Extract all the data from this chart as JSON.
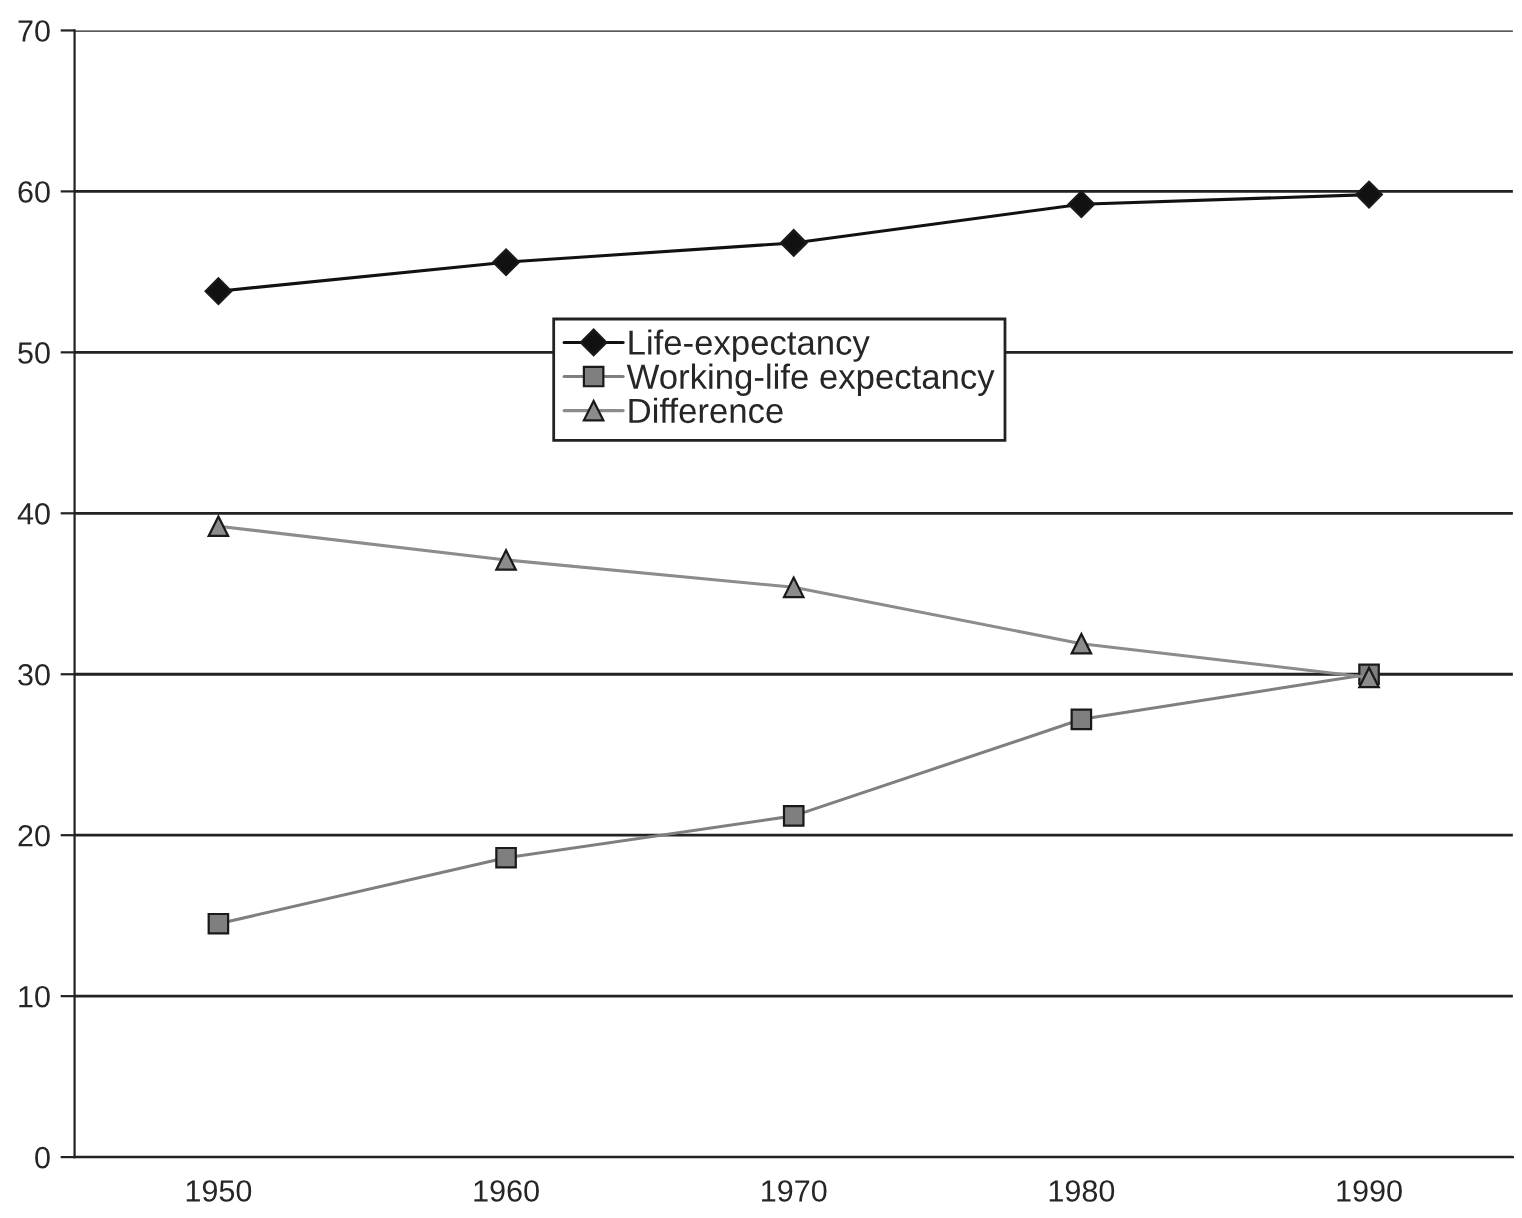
{
  "chart_data": {
    "type": "line",
    "categories": [
      "1950",
      "1960",
      "1970",
      "1980",
      "1990"
    ],
    "series": [
      {
        "name": "Life-expectancy",
        "color": "#111111",
        "marker": "diamond",
        "values": [
          53.8,
          55.6,
          56.8,
          59.2,
          59.8
        ]
      },
      {
        "name": "Working-life expectancy",
        "color": "#7f7f7f",
        "marker": "square",
        "values": [
          14.5,
          18.6,
          21.2,
          27.2,
          30.0
        ]
      },
      {
        "name": "Difference",
        "color": "#8c8c8c",
        "marker": "triangle",
        "values": [
          39.2,
          37.1,
          35.4,
          31.9,
          29.8
        ]
      }
    ],
    "ylim": [
      0,
      70
    ],
    "yticks": [
      0,
      10,
      20,
      30,
      40,
      50,
      60,
      70
    ],
    "grid": "y",
    "legend": "center",
    "line_style": "solid"
  }
}
